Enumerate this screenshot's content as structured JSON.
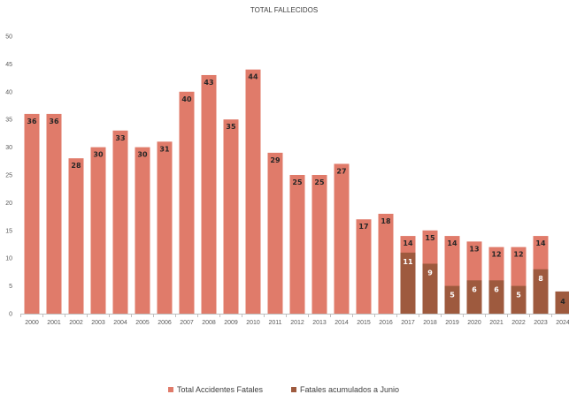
{
  "chart_data": {
    "type": "bar",
    "title": "TOTAL FALLECIDOS",
    "xlabel": "",
    "ylabel": "",
    "ylim": [
      0,
      50
    ],
    "yticks": [
      0,
      5,
      10,
      15,
      20,
      25,
      30,
      35,
      40,
      45,
      50
    ],
    "grid": false,
    "legend_position": "bottom",
    "categories": [
      "2000",
      "2001",
      "2002",
      "2003",
      "2004",
      "2005",
      "2006",
      "2007",
      "2008",
      "2009",
      "2010",
      "2011",
      "2012",
      "2013",
      "2014",
      "2015",
      "2016",
      "2017",
      "2018",
      "2019",
      "2020",
      "2021",
      "2022",
      "2023",
      "2024"
    ],
    "series": [
      {
        "name": "Total Accidentes Fatales",
        "color": "#E07B6A",
        "values": [
          36,
          36,
          28,
          30,
          33,
          30,
          31,
          40,
          43,
          35,
          44,
          29,
          25,
          25,
          27,
          17,
          18,
          14,
          15,
          14,
          13,
          12,
          12,
          14,
          null
        ]
      },
      {
        "name": "Fatales acumulados a Junio",
        "color": "#9E5A3E",
        "values": [
          null,
          null,
          null,
          null,
          null,
          null,
          null,
          null,
          null,
          null,
          null,
          null,
          null,
          null,
          null,
          null,
          null,
          11,
          9,
          5,
          6,
          6,
          5,
          8,
          4
        ]
      }
    ]
  }
}
